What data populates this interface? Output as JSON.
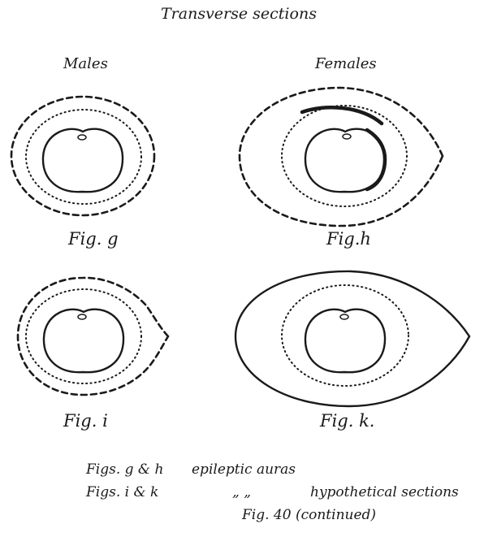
{
  "title": "Transverse sections",
  "columns": {
    "left": "Males",
    "right": "Females"
  },
  "figures": {
    "g": "Fig. g",
    "h": "Fig.h",
    "i": "Fig. i",
    "k": "Fig. k."
  },
  "caption": {
    "line1_figs": "Figs. g & h",
    "line1_text": "epileptic auras",
    "line2_figs": "Figs. i & k",
    "line2_ditto": "„      „",
    "line2_text": "hypothetical sections",
    "line3": "Fig. 40 (continued)"
  },
  "colors": {
    "ink": "#1a1a1a",
    "background": "#ffffff"
  }
}
